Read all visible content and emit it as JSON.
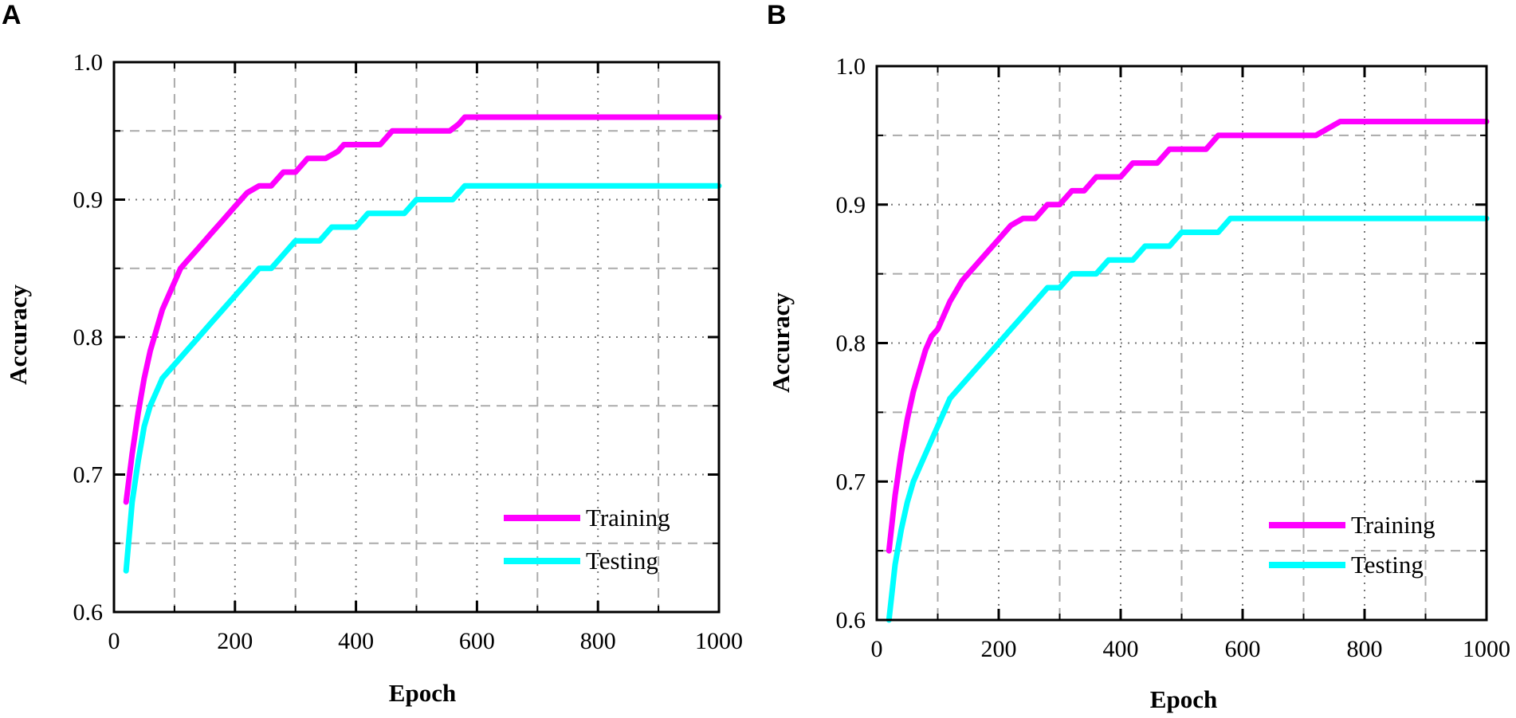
{
  "figure": {
    "panels": [
      "A",
      "B"
    ]
  },
  "chart_data": [
    {
      "panel": "A",
      "type": "line",
      "xlabel": "Epoch",
      "ylabel": "Accuracy",
      "xlim": [
        0,
        1000
      ],
      "ylim": [
        0.6,
        1.0
      ],
      "x_ticks": [
        "0",
        "200",
        "400",
        "600",
        "800",
        "1000"
      ],
      "y_ticks": [
        "0.6",
        "0.7",
        "0.8",
        "0.9",
        "1.0"
      ],
      "grid": true,
      "legend_position": "bottom-right",
      "series": [
        {
          "name": "Training",
          "color": "#ff00ff",
          "x": [
            20,
            30,
            40,
            50,
            60,
            70,
            80,
            90,
            100,
            110,
            120,
            140,
            160,
            180,
            200,
            220,
            240,
            260,
            280,
            300,
            320,
            330,
            350,
            370,
            380,
            400,
            420,
            440,
            460,
            470,
            480,
            500,
            520,
            540,
            555,
            570,
            580,
            590,
            600,
            1000
          ],
          "y": [
            0.68,
            0.715,
            0.745,
            0.77,
            0.79,
            0.805,
            0.82,
            0.83,
            0.84,
            0.85,
            0.855,
            0.865,
            0.875,
            0.885,
            0.895,
            0.905,
            0.91,
            0.91,
            0.92,
            0.92,
            0.93,
            0.93,
            0.93,
            0.935,
            0.94,
            0.94,
            0.94,
            0.94,
            0.95,
            0.95,
            0.95,
            0.95,
            0.95,
            0.95,
            0.95,
            0.955,
            0.96,
            0.96,
            0.96,
            0.96
          ]
        },
        {
          "name": "Testing",
          "color": "#00ffff",
          "x": [
            20,
            30,
            40,
            50,
            60,
            70,
            80,
            90,
            100,
            120,
            140,
            160,
            180,
            200,
            220,
            240,
            260,
            280,
            300,
            320,
            340,
            360,
            380,
            400,
            420,
            440,
            460,
            480,
            500,
            520,
            540,
            560,
            580,
            590,
            600,
            1000
          ],
          "y": [
            0.63,
            0.68,
            0.71,
            0.735,
            0.75,
            0.76,
            0.77,
            0.775,
            0.78,
            0.79,
            0.8,
            0.81,
            0.82,
            0.83,
            0.84,
            0.85,
            0.85,
            0.86,
            0.87,
            0.87,
            0.87,
            0.88,
            0.88,
            0.88,
            0.89,
            0.89,
            0.89,
            0.89,
            0.9,
            0.9,
            0.9,
            0.9,
            0.91,
            0.91,
            0.91,
            0.91
          ]
        }
      ]
    },
    {
      "panel": "B",
      "type": "line",
      "xlabel": "Epoch",
      "ylabel": "Accuracy",
      "xlim": [
        0,
        1000
      ],
      "ylim": [
        0.6,
        1.0
      ],
      "x_ticks": [
        "0",
        "200",
        "400",
        "600",
        "800",
        "1000"
      ],
      "y_ticks": [
        "0.6",
        "0.7",
        "0.8",
        "0.9",
        "1.0"
      ],
      "grid": true,
      "legend_position": "bottom-right",
      "series": [
        {
          "name": "Training",
          "color": "#ff00ff",
          "x": [
            20,
            30,
            40,
            50,
            60,
            70,
            80,
            90,
            100,
            120,
            140,
            160,
            180,
            200,
            220,
            240,
            260,
            280,
            300,
            320,
            340,
            360,
            380,
            400,
            420,
            440,
            460,
            480,
            500,
            520,
            540,
            560,
            580,
            600,
            650,
            700,
            720,
            740,
            760,
            1000
          ],
          "y": [
            0.65,
            0.69,
            0.72,
            0.745,
            0.765,
            0.78,
            0.795,
            0.805,
            0.81,
            0.83,
            0.845,
            0.855,
            0.865,
            0.875,
            0.885,
            0.89,
            0.89,
            0.9,
            0.9,
            0.91,
            0.91,
            0.92,
            0.92,
            0.92,
            0.93,
            0.93,
            0.93,
            0.94,
            0.94,
            0.94,
            0.94,
            0.95,
            0.95,
            0.95,
            0.95,
            0.95,
            0.95,
            0.955,
            0.96,
            0.96
          ]
        },
        {
          "name": "Testing",
          "color": "#00ffff",
          "x": [
            20,
            30,
            40,
            50,
            60,
            70,
            80,
            90,
            100,
            120,
            140,
            160,
            180,
            200,
            220,
            240,
            260,
            280,
            300,
            320,
            340,
            360,
            380,
            400,
            420,
            440,
            460,
            480,
            500,
            520,
            540,
            560,
            580,
            600,
            1000
          ],
          "y": [
            0.6,
            0.64,
            0.665,
            0.685,
            0.7,
            0.71,
            0.72,
            0.73,
            0.74,
            0.76,
            0.77,
            0.78,
            0.79,
            0.8,
            0.81,
            0.82,
            0.83,
            0.84,
            0.84,
            0.85,
            0.85,
            0.85,
            0.86,
            0.86,
            0.86,
            0.87,
            0.87,
            0.87,
            0.88,
            0.88,
            0.88,
            0.88,
            0.89,
            0.89,
            0.89
          ]
        }
      ]
    }
  ]
}
